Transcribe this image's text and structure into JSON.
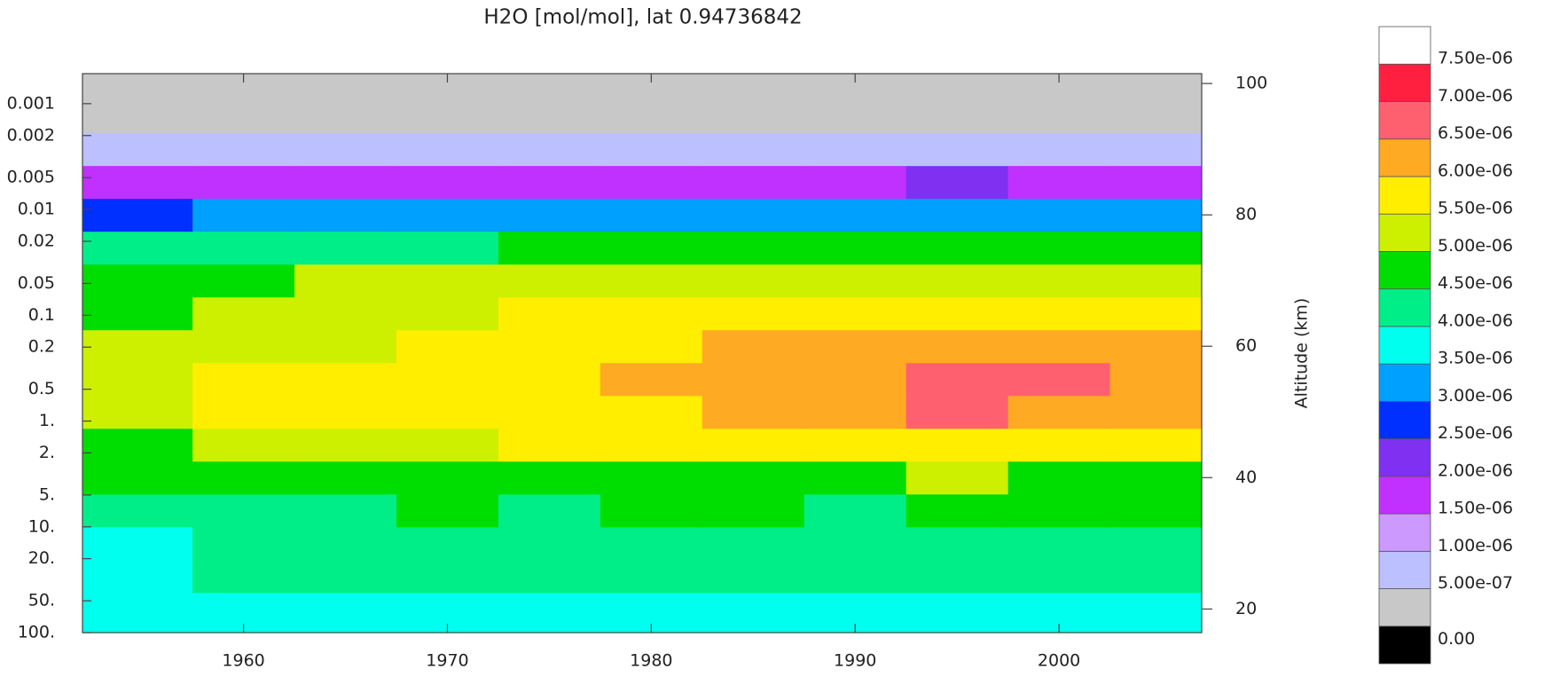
{
  "chart_data": {
    "type": "contour",
    "title": "H2O [mol/mol], lat 0.94736842",
    "x": [
      1955,
      1960,
      1965,
      1970,
      1975,
      1980,
      1985,
      1990,
      1995,
      2000,
      2005
    ],
    "y": [
      20,
      25,
      30,
      35,
      40,
      45,
      50,
      55,
      60,
      65,
      70,
      75,
      80,
      85,
      90,
      95,
      100
    ],
    "z": [
      [
        3.6e-06,
        3.9e-06,
        3.9e-06,
        3.9e-06,
        3.8e-06,
        3.9e-06,
        3.9e-06,
        3.9e-06,
        3.9e-06,
        3.9e-06,
        3.9e-06
      ],
      [
        3.7e-06,
        4.2e-06,
        4.2e-06,
        4.3e-06,
        4.2e-06,
        4.3e-06,
        4.2e-06,
        4.2e-06,
        4.3e-06,
        4.2e-06,
        4.3e-06
      ],
      [
        3.8e-06,
        4.3e-06,
        4.4e-06,
        4.3e-06,
        4.4e-06,
        4.3e-06,
        4.3e-06,
        4.4e-06,
        4.4e-06,
        4.3e-06,
        4.4e-06
      ],
      [
        4.1e-06,
        4.3e-06,
        4.4e-06,
        4.6e-06,
        4.4e-06,
        4.5e-06,
        4.6e-06,
        4.4e-06,
        4.7e-06,
        4.6e-06,
        4.5e-06
      ],
      [
        4.6e-06,
        4.7e-06,
        4.7e-06,
        4.7e-06,
        4.8e-06,
        4.8e-06,
        4.9e-06,
        4.9e-06,
        5.1e-06,
        4.9e-06,
        4.8e-06
      ],
      [
        4.9e-06,
        5.2e-06,
        5.3e-06,
        5.4e-06,
        5.5e-06,
        5.6e-06,
        5.5e-06,
        5.7e-06,
        5.8e-06,
        5.7e-06,
        5.6e-06
      ],
      [
        5.1e-06,
        5.5e-06,
        5.6e-06,
        5.6e-06,
        5.7e-06,
        5.9e-06,
        6e-06,
        6.2e-06,
        6.6e-06,
        6.4e-06,
        6.3e-06
      ],
      [
        5.1e-06,
        5.6e-06,
        5.6e-06,
        5.8e-06,
        5.8e-06,
        6.1e-06,
        6.2e-06,
        6.3e-06,
        6.6e-06,
        6.5e-06,
        6.4e-06
      ],
      [
        5e-06,
        5.3e-06,
        5.4e-06,
        5.6e-06,
        5.7e-06,
        5.9e-06,
        6e-06,
        6.1e-06,
        6.2e-06,
        6.2e-06,
        6e-06
      ],
      [
        4.9e-06,
        5.2e-06,
        5.3e-06,
        5.4e-06,
        5.5e-06,
        5.6e-06,
        5.7e-06,
        5.7e-06,
        5.8e-06,
        5.8e-06,
        5.6e-06
      ],
      [
        4.7e-06,
        4.9e-06,
        5e-06,
        5.1e-06,
        5.1e-06,
        5.2e-06,
        5.2e-06,
        5.3e-06,
        5.3e-06,
        5.3e-06,
        5.2e-06
      ],
      [
        4.1e-06,
        4.3e-06,
        4.4e-06,
        4.4e-06,
        4.5e-06,
        4.5e-06,
        4.6e-06,
        4.6e-06,
        4.6e-06,
        4.6e-06,
        4.5e-06
      ],
      [
        2.9e-06,
        3.1e-06,
        3.1e-06,
        3.2e-06,
        3.2e-06,
        3.2e-06,
        3.3e-06,
        3.2e-06,
        3.3e-06,
        3.3e-06,
        3.2e-06
      ],
      [
        1.6e-06,
        1.8e-06,
        1.8e-06,
        1.9e-06,
        1.9e-06,
        1.9e-06,
        1.9e-06,
        1.9e-06,
        2e-06,
        1.9e-06,
        1.9e-06
      ],
      [
        7e-07,
        8e-07,
        8e-07,
        9e-07,
        9e-07,
        8e-07,
        9e-07,
        9e-07,
        9e-07,
        9e-07,
        8e-07
      ],
      [
        3e-07,
        3e-07,
        3e-07,
        3e-07,
        4e-07,
        3e-07,
        4e-07,
        4e-07,
        4e-07,
        4e-07,
        3e-07
      ],
      [
        0,
        0,
        0,
        0,
        0,
        0,
        0,
        0,
        0,
        0,
        0
      ]
    ],
    "xlim": [
      1952.1,
      2007
    ],
    "xticks": [
      1960,
      1970,
      1980,
      1990,
      2000
    ],
    "ylim": [
      0.00052,
      100
    ],
    "ylog": true,
    "yreverse": true,
    "yticks": [
      {
        "value": 0.001,
        "label": "0.001"
      },
      {
        "value": 0.002,
        "label": "0.002"
      },
      {
        "value": 0.005,
        "label": "0.005"
      },
      0.01,
      0.02,
      0.05,
      0.1,
      0.2,
      0.5,
      {
        "value": 1,
        "label": "1."
      },
      {
        "value": 2,
        "label": "2."
      },
      {
        "value": 5,
        "label": "5."
      },
      {
        "value": 10,
        "label": "10."
      },
      {
        "value": 20,
        "label": "20."
      },
      {
        "value": 50,
        "label": "50."
      },
      {
        "value": 100,
        "label": "100."
      }
    ],
    "y2label": "Altitude (km)",
    "y2lim": [
      16.4,
      101.5
    ],
    "y2ticks": [
      20,
      40,
      60,
      80,
      100
    ],
    "colorbar": {
      "levels": [
        {
          "value": 0,
          "label": "0.00"
        },
        {
          "value": 5e-07,
          "label": "5.00e-07"
        },
        {
          "value": 1e-06,
          "label": "1.00e-06"
        },
        {
          "value": 1.5e-06,
          "label": "1.50e-06"
        },
        {
          "value": 2e-06,
          "label": "2.00e-06"
        },
        {
          "value": 2.5e-06,
          "label": "2.50e-06"
        },
        {
          "value": 3e-06,
          "label": "3.00e-06"
        },
        {
          "value": 3.5e-06,
          "label": "3.50e-06"
        },
        {
          "value": 4e-06,
          "label": "4.00e-06"
        },
        {
          "value": 4.5e-06,
          "label": "4.50e-06"
        },
        {
          "value": 5e-06,
          "label": "5.00e-06"
        },
        {
          "value": 5.5e-06,
          "label": "5.50e-06"
        },
        {
          "value": 6e-06,
          "label": "6.00e-06"
        },
        {
          "value": 6.5e-06,
          "label": "6.50e-06"
        },
        {
          "value": 7e-06,
          "label": "7.00e-06"
        },
        {
          "value": 7.5e-06,
          "label": "7.50e-06"
        }
      ],
      "colors": [
        "#000000",
        "#c8c8c8",
        "#bcc0ff",
        "#cc99ff",
        "#c030ff",
        "#8030f0",
        "#0030ff",
        "#00a0ff",
        "#00ffee",
        "#00ee88",
        "#00dd00",
        "#ccf000",
        "#ffee00",
        "#ffaa22",
        "#ff6070",
        "#ff2040",
        "#ffffff"
      ]
    }
  }
}
